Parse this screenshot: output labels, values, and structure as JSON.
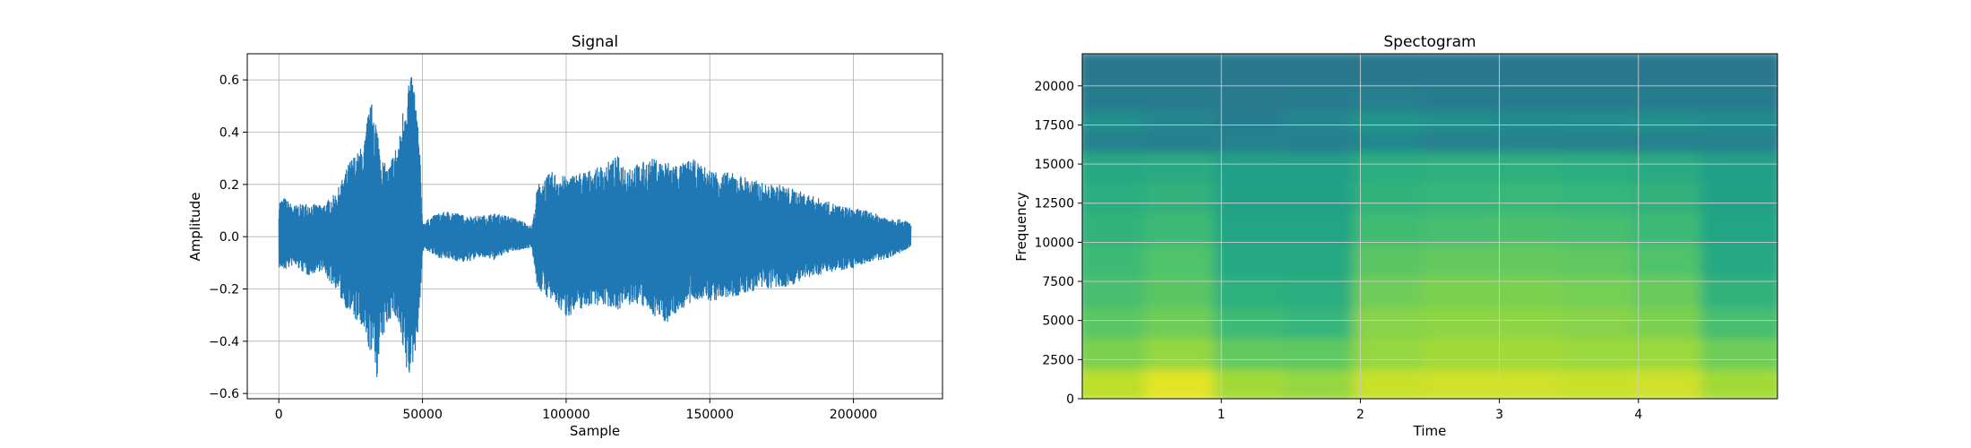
{
  "chart_data": [
    {
      "type": "line",
      "title": "Signal",
      "xlabel": "Sample",
      "ylabel": "Amplitude",
      "xlim": [
        -11000,
        231000
      ],
      "ylim": [
        -0.62,
        0.7
      ],
      "grid": true,
      "xticks": [
        0,
        50000,
        100000,
        150000,
        200000
      ],
      "xtick_labels": [
        "0",
        "50000",
        "100000",
        "150000",
        "200000"
      ],
      "yticks": [
        -0.6,
        -0.4,
        -0.2,
        0.0,
        0.2,
        0.4,
        0.6
      ],
      "ytick_labels": [
        "−0.6",
        "−0.4",
        "−0.2",
        "0.0",
        "0.2",
        "0.4",
        "0.6"
      ],
      "color": "#1f77b4",
      "envelope": {
        "x": [
          0,
          2000,
          5000,
          10000,
          15000,
          18000,
          20000,
          22000,
          25000,
          28000,
          30000,
          31000,
          33000,
          34000,
          36000,
          38000,
          40000,
          42000,
          43000,
          44000,
          45000,
          47000,
          48000,
          49000,
          50000,
          51000,
          55000,
          60000,
          65000,
          70000,
          75000,
          80000,
          85000,
          88000,
          89000,
          90000,
          92000,
          95000,
          100000,
          105000,
          110000,
          115000,
          118000,
          120000,
          125000,
          130000,
          135000,
          140000,
          144000,
          146000,
          150000,
          155000,
          160000,
          165000,
          170000,
          175000,
          180000,
          185000,
          190000,
          195000,
          200000,
          205000,
          210000,
          215000,
          219000,
          220000
        ],
        "max": [
          0.14,
          0.15,
          0.12,
          0.13,
          0.12,
          0.15,
          0.17,
          0.22,
          0.3,
          0.33,
          0.38,
          0.48,
          0.53,
          0.44,
          0.3,
          0.26,
          0.33,
          0.38,
          0.48,
          0.55,
          0.63,
          0.6,
          0.5,
          0.35,
          0.05,
          0.06,
          0.09,
          0.1,
          0.08,
          0.08,
          0.09,
          0.08,
          0.06,
          0.04,
          0.1,
          0.2,
          0.22,
          0.25,
          0.23,
          0.25,
          0.26,
          0.29,
          0.31,
          0.28,
          0.28,
          0.3,
          0.29,
          0.28,
          0.3,
          0.28,
          0.26,
          0.25,
          0.24,
          0.22,
          0.2,
          0.2,
          0.18,
          0.16,
          0.14,
          0.12,
          0.11,
          0.1,
          0.08,
          0.07,
          0.06,
          0.05
        ],
        "min": [
          -0.12,
          -0.13,
          -0.11,
          -0.15,
          -0.13,
          -0.18,
          -0.2,
          -0.25,
          -0.3,
          -0.34,
          -0.4,
          -0.43,
          -0.46,
          -0.55,
          -0.4,
          -0.33,
          -0.3,
          -0.36,
          -0.46,
          -0.5,
          -0.56,
          -0.48,
          -0.4,
          -0.3,
          -0.06,
          -0.05,
          -0.08,
          -0.09,
          -0.1,
          -0.08,
          -0.09,
          -0.06,
          -0.05,
          -0.04,
          -0.12,
          -0.2,
          -0.22,
          -0.25,
          -0.31,
          -0.28,
          -0.26,
          -0.27,
          -0.28,
          -0.27,
          -0.26,
          -0.3,
          -0.33,
          -0.28,
          -0.26,
          -0.24,
          -0.25,
          -0.24,
          -0.23,
          -0.21,
          -0.2,
          -0.2,
          -0.18,
          -0.16,
          -0.14,
          -0.13,
          -0.12,
          -0.1,
          -0.09,
          -0.07,
          -0.05,
          -0.04
        ]
      }
    },
    {
      "type": "heatmap",
      "title": "Spectogram",
      "xlabel": "Time",
      "ylabel": "Frequency",
      "xlim": [
        0.0,
        5.0
      ],
      "ylim": [
        0,
        22050
      ],
      "grid": true,
      "xticks": [
        1,
        2,
        3,
        4
      ],
      "xtick_labels": [
        "1",
        "2",
        "3",
        "4"
      ],
      "yticks": [
        0,
        2500,
        5000,
        7500,
        10000,
        12500,
        15000,
        17500,
        20000
      ],
      "ytick_labels": [
        "0",
        "2500",
        "5000",
        "7500",
        "10000",
        "12500",
        "15000",
        "17500",
        "20000"
      ],
      "colormap": "viridis",
      "time_bins": [
        0.25,
        0.75,
        1.25,
        1.75,
        2.25,
        2.75,
        3.25,
        3.75,
        4.25,
        4.75
      ],
      "freq_bins": [
        1000,
        3000,
        5000,
        7000,
        9000,
        11000,
        13000,
        15000,
        16800,
        17800,
        19200,
        21000
      ],
      "intensity": [
        [
          0.9,
          0.96,
          0.86,
          0.84,
          0.92,
          0.93,
          0.93,
          0.92,
          0.93,
          0.86
        ],
        [
          0.8,
          0.84,
          0.76,
          0.75,
          0.84,
          0.86,
          0.86,
          0.85,
          0.85,
          0.78
        ],
        [
          0.74,
          0.78,
          0.68,
          0.66,
          0.82,
          0.83,
          0.83,
          0.82,
          0.8,
          0.7
        ],
        [
          0.7,
          0.74,
          0.63,
          0.62,
          0.78,
          0.8,
          0.8,
          0.79,
          0.77,
          0.64
        ],
        [
          0.68,
          0.72,
          0.6,
          0.6,
          0.74,
          0.76,
          0.76,
          0.75,
          0.72,
          0.6
        ],
        [
          0.65,
          0.68,
          0.58,
          0.58,
          0.69,
          0.7,
          0.71,
          0.7,
          0.68,
          0.58
        ],
        [
          0.62,
          0.64,
          0.57,
          0.57,
          0.65,
          0.66,
          0.67,
          0.66,
          0.64,
          0.57
        ],
        [
          0.6,
          0.61,
          0.56,
          0.56,
          0.62,
          0.63,
          0.63,
          0.62,
          0.61,
          0.56
        ],
        [
          0.44,
          0.43,
          0.44,
          0.43,
          0.47,
          0.44,
          0.45,
          0.44,
          0.44,
          0.44
        ],
        [
          0.5,
          0.46,
          0.42,
          0.46,
          0.52,
          0.5,
          0.48,
          0.49,
          0.5,
          0.48
        ],
        [
          0.42,
          0.42,
          0.41,
          0.42,
          0.43,
          0.42,
          0.42,
          0.42,
          0.42,
          0.42
        ],
        [
          0.4,
          0.4,
          0.4,
          0.4,
          0.4,
          0.4,
          0.4,
          0.4,
          0.4,
          0.4
        ]
      ]
    }
  ]
}
